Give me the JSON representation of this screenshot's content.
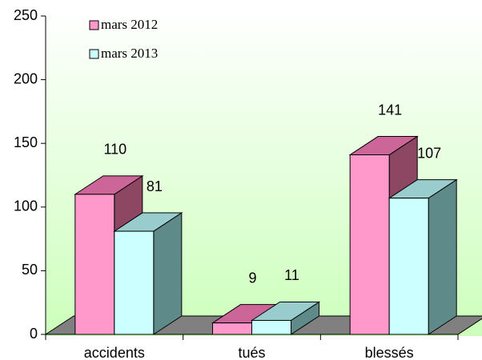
{
  "chart_data": {
    "type": "bar",
    "categories": [
      "accidents",
      "tués",
      "blessés"
    ],
    "series": [
      {
        "name": "mars 2012",
        "color": "#ff99cc",
        "top_color": "#cc6699",
        "side_color": "#8e4763",
        "values": [
          110,
          9,
          141
        ]
      },
      {
        "name": "mars 2013",
        "color": "#ccffff",
        "top_color": "#99cccc",
        "side_color": "#5f8a8a",
        "values": [
          81,
          11,
          107
        ]
      }
    ],
    "ylim": [
      0,
      250
    ],
    "yticks": [
      0,
      50,
      100,
      150,
      200,
      250
    ],
    "legend": "top-left",
    "three_d": true
  }
}
